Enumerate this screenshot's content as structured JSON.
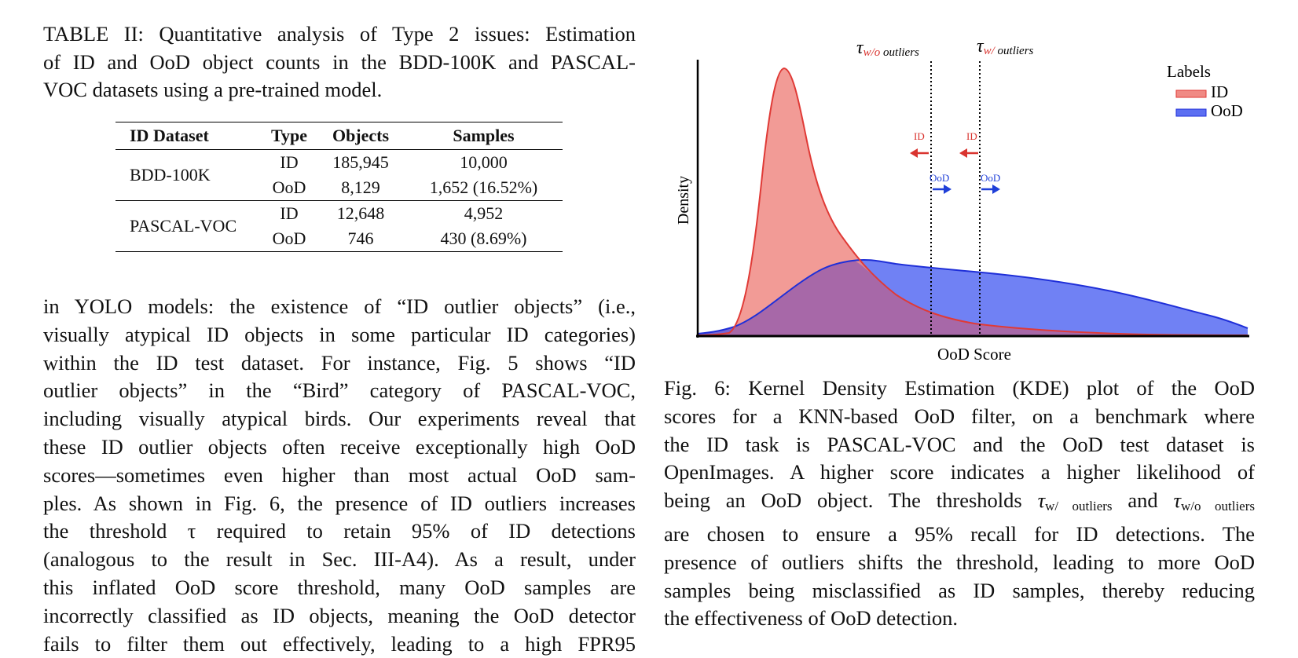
{
  "table_caption_lines": [
    "TABLE II: Quantitative analysis of Type 2 issues: Estimation",
    "of ID and OoD object counts in the BDD-100K and PASCAL-",
    "VOC datasets using a pre-trained model."
  ],
  "table": {
    "headers": [
      "ID Dataset",
      "Type",
      "Objects",
      "Samples"
    ],
    "groups": [
      {
        "dataset": "BDD-100K",
        "rows": [
          {
            "type": "ID",
            "objects": "185,945",
            "samples": "10,000"
          },
          {
            "type": "OoD",
            "objects": "8,129",
            "samples": "1,652 (16.52%)"
          }
        ]
      },
      {
        "dataset": "PASCAL-VOC",
        "rows": [
          {
            "type": "ID",
            "objects": "12,648",
            "samples": "4,952"
          },
          {
            "type": "OoD",
            "objects": "746",
            "samples": "430 (8.69%)"
          }
        ]
      }
    ]
  },
  "body_lines": [
    "in YOLO models: the existence of “ID outlier objects” (i.e.,",
    "visually atypical ID objects in some particular ID categories)",
    "within the ID test dataset. For instance, Fig. 5 shows “ID",
    "outlier objects” in the “Bird” category of PASCAL-VOC,",
    "including visually atypical birds. Our experiments reveal that",
    "these ID outlier objects often receive exceptionally high OoD",
    "scores—sometimes even higher than most actual OoD sam-",
    "ples. As shown in Fig. 6, the presence of ID outliers increases",
    "the threshold τ required to retain 95% of ID detections",
    "(analogous to the result in Sec. III-A4). As a result, under",
    "this inflated OoD score threshold, many OoD samples are",
    "incorrectly classified as ID objects, meaning the OoD detector",
    "fails to filter them out effectively, leading to a high FPR95"
  ],
  "figure": {
    "ylabel": "Density",
    "xlabel": "OoD Score",
    "legend_title": "Labels",
    "legend": [
      {
        "name": "ID",
        "color": "#f08080"
      },
      {
        "name": "OoD",
        "color": "#5b6ef0"
      }
    ],
    "threshold_wo": {
      "tau": "τ",
      "sub_colored": "w/o",
      "sub_plain": " outliers"
    },
    "threshold_w": {
      "tau": "τ",
      "sub_colored": "w/",
      "sub_plain": " outliers"
    },
    "arrow_id_label": "ID",
    "arrow_ood_label": "OoD",
    "colors": {
      "id_fill": "#f08a84",
      "id_line": "#e03a36",
      "ood_fill": "#5c6ff2",
      "ood_line": "#1f2fd8",
      "threshold_label": "#d9342f"
    }
  },
  "fig_caption": {
    "line1": "Fig. 6: Kernel Density Estimation (KDE) plot of the OoD",
    "line2": "scores for a KNN-based OoD filter, on a benchmark where",
    "line3": "the ID task is PASCAL-VOC and the OoD test dataset is",
    "line4": "OpenImages. A higher score indicates a higher likelihood of",
    "line5_a": "being an OoD object. The thresholds ",
    "tau": "τ",
    "sub_w": "w/ outliers",
    "and": " and ",
    "sub_wo": "w/o outliers",
    "line6": "are chosen to ensure a 95% recall for ID detections. The",
    "line7": "presence of outliers shifts the threshold, leading to more OoD",
    "line8": "samples being misclassified as ID samples, thereby reducing",
    "line9": "the effectiveness of OoD detection."
  }
}
